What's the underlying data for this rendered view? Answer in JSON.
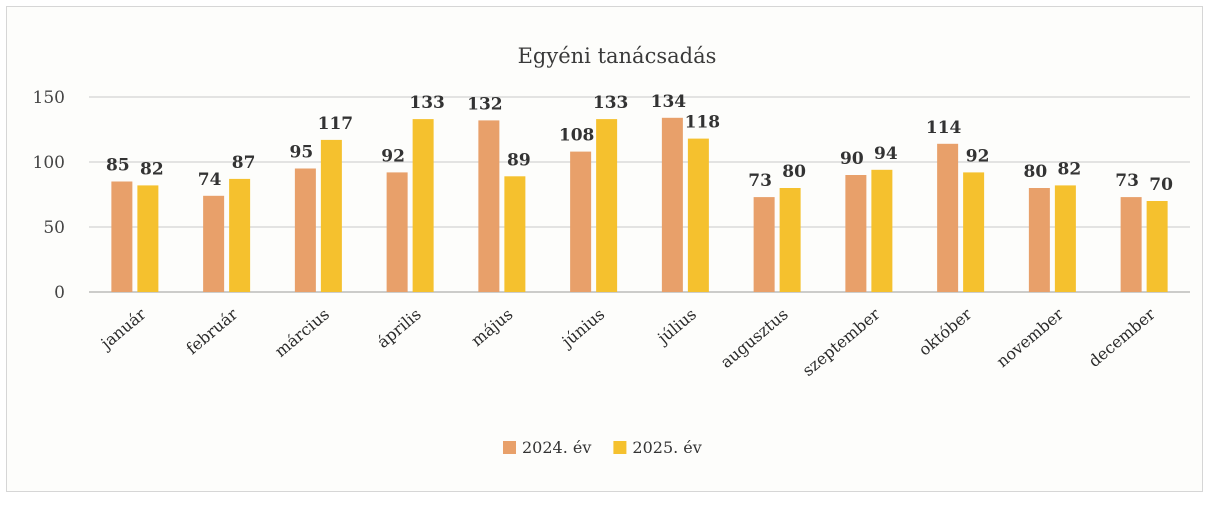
{
  "chart_data": {
    "type": "bar",
    "title": "Egyéni tanácsadás",
    "categories": [
      "január",
      "február",
      "március",
      "április",
      "május",
      "június",
      "július",
      "augusztus",
      "szeptember",
      "október",
      "november",
      "december"
    ],
    "series": [
      {
        "name": "2024. év",
        "color": "#e8a06a",
        "values": [
          85,
          74,
          95,
          92,
          132,
          108,
          134,
          73,
          90,
          114,
          80,
          73
        ]
      },
      {
        "name": "2025. év",
        "color": "#f5c12e",
        "values": [
          82,
          87,
          117,
          133,
          89,
          133,
          118,
          80,
          94,
          92,
          82,
          70
        ]
      }
    ],
    "yticks": [
      0,
      50,
      100,
      150
    ],
    "ylim": [
      0,
      150
    ],
    "grid": true,
    "legend": "bottom"
  }
}
